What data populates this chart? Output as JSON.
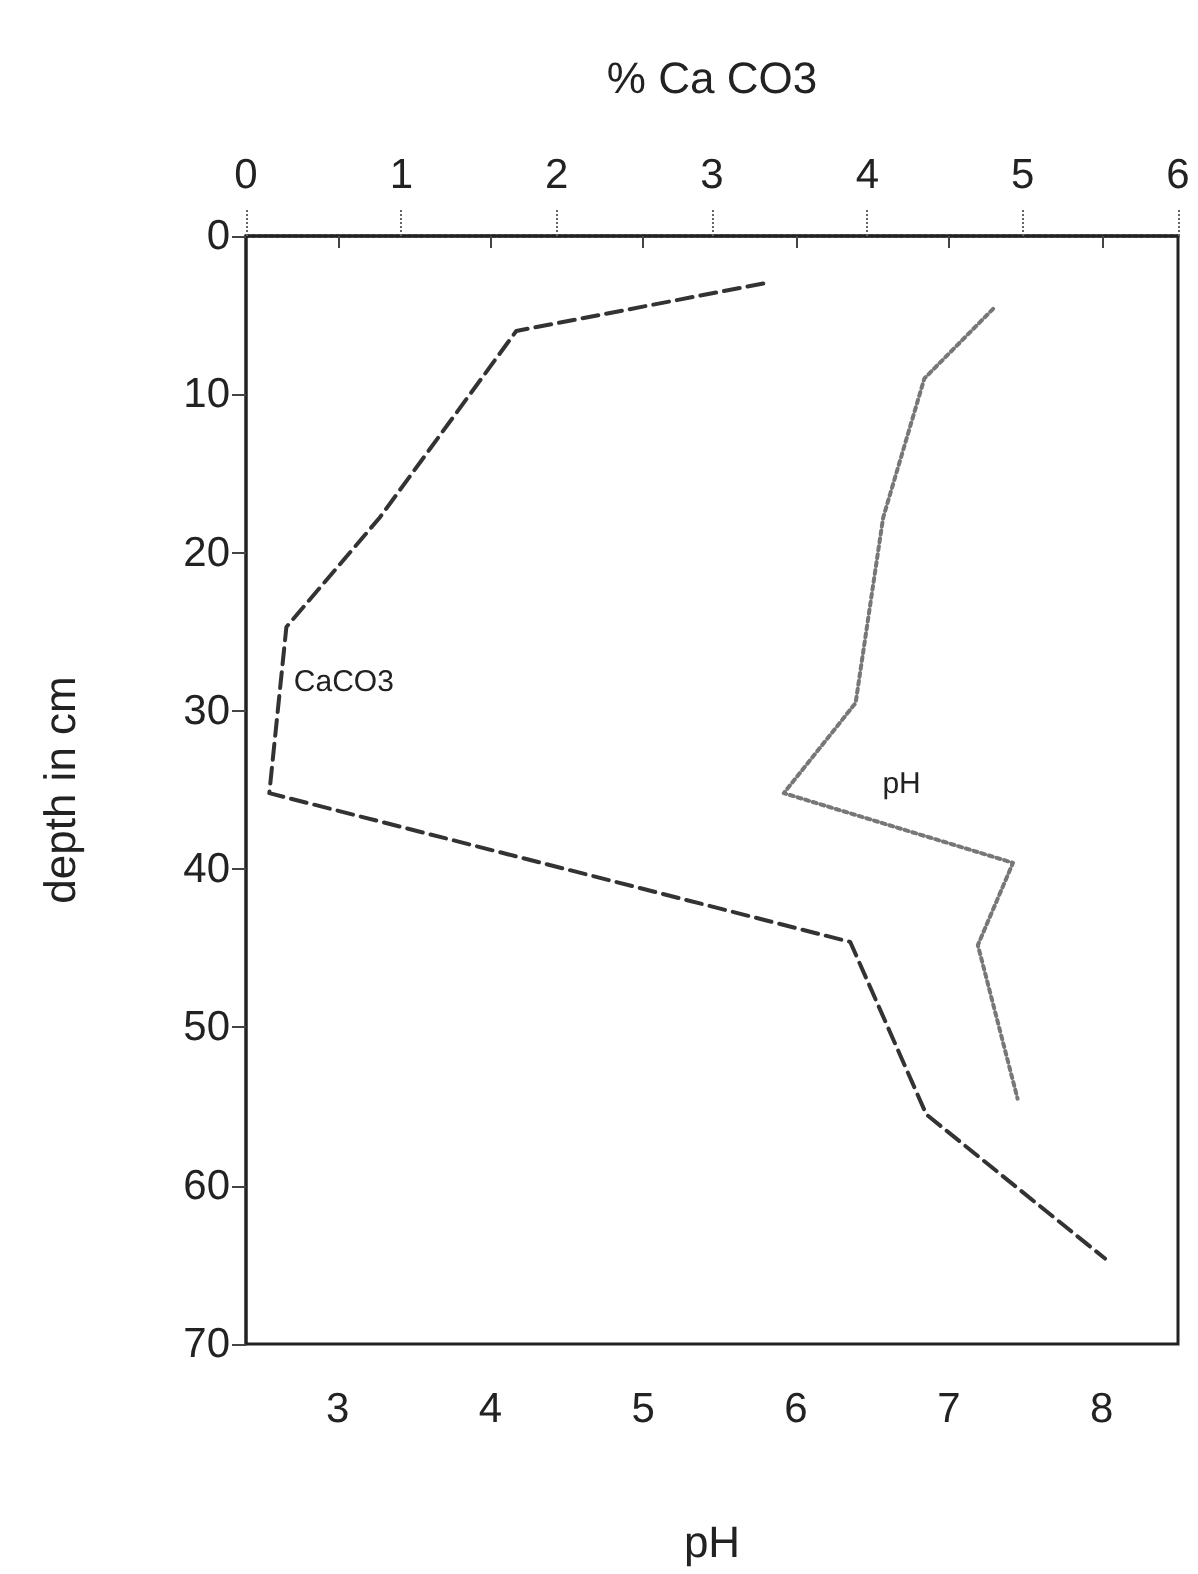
{
  "chart_data": {
    "type": "line",
    "xlabel": "pH",
    "x2label": "% Ca CO3",
    "ylabel": "depth in cm",
    "xlim": [
      2.4,
      8.5
    ],
    "xticks": [
      3,
      4,
      5,
      6,
      7,
      8
    ],
    "x2lim": [
      0,
      6
    ],
    "x2ticks": [
      0,
      1,
      2,
      3,
      4,
      5,
      6
    ],
    "ylim": [
      70,
      0
    ],
    "yticks": [
      0,
      10,
      20,
      30,
      40,
      50,
      60,
      70
    ],
    "grid": false,
    "legend": false,
    "marker": "none",
    "series": [
      {
        "name": "CaCO3",
        "color": "#333333",
        "line_style": "dashed",
        "axis": "x2",
        "x": [
          3.33,
          1.74,
          0.86,
          0.26,
          0.15,
          3.89,
          4.38,
          5.53
        ],
        "values": [
          3.0,
          6.0,
          17.8,
          24.7,
          35.2,
          44.6,
          55.5,
          64.6
        ]
      },
      {
        "name": "pH",
        "color": "#777777",
        "line_style": "dotted",
        "x": [
          7.29,
          6.84,
          6.57,
          6.39,
          5.92,
          7.42,
          7.19,
          7.45
        ],
        "values": [
          4.6,
          9.0,
          17.8,
          29.5,
          35.2,
          39.6,
          44.8,
          54.5
        ]
      }
    ]
  }
}
